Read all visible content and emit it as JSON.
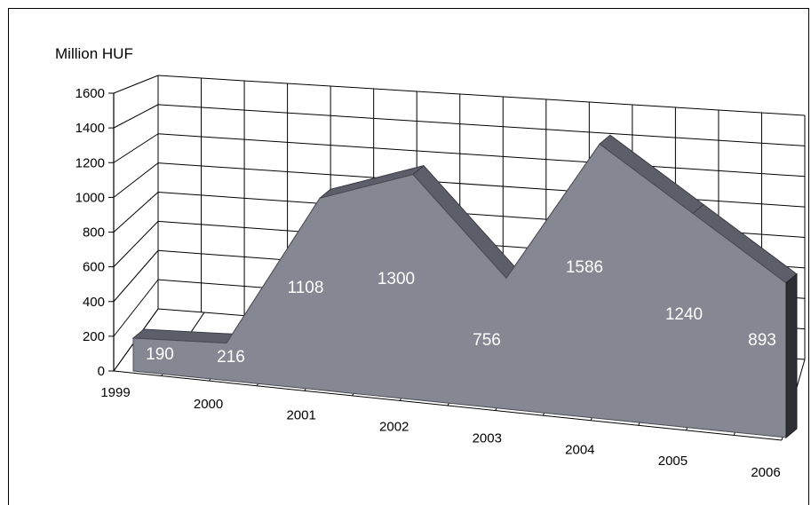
{
  "chart_data": {
    "type": "area",
    "ylabel": "Million HUF",
    "categories": [
      "1999",
      "2000",
      "2001",
      "2002",
      "2003",
      "2004",
      "2005",
      "2006"
    ],
    "values": [
      190,
      216,
      1108,
      1300,
      756,
      1586,
      1240,
      893
    ],
    "value_labels": [
      "190",
      "216",
      "1108",
      "1300",
      "756",
      "1586",
      "1240",
      "893"
    ],
    "ylim": [
      0,
      1600
    ],
    "yticks": [
      "0",
      "200",
      "400",
      "600",
      "800",
      "1000",
      "1200",
      "1400",
      "1600"
    ],
    "grid": true,
    "style": "3d",
    "colors": {
      "front": "#858893",
      "top": "#5c5f6a",
      "side": "#2d2f35",
      "grid": "#000000",
      "label": "#ffffff"
    }
  }
}
